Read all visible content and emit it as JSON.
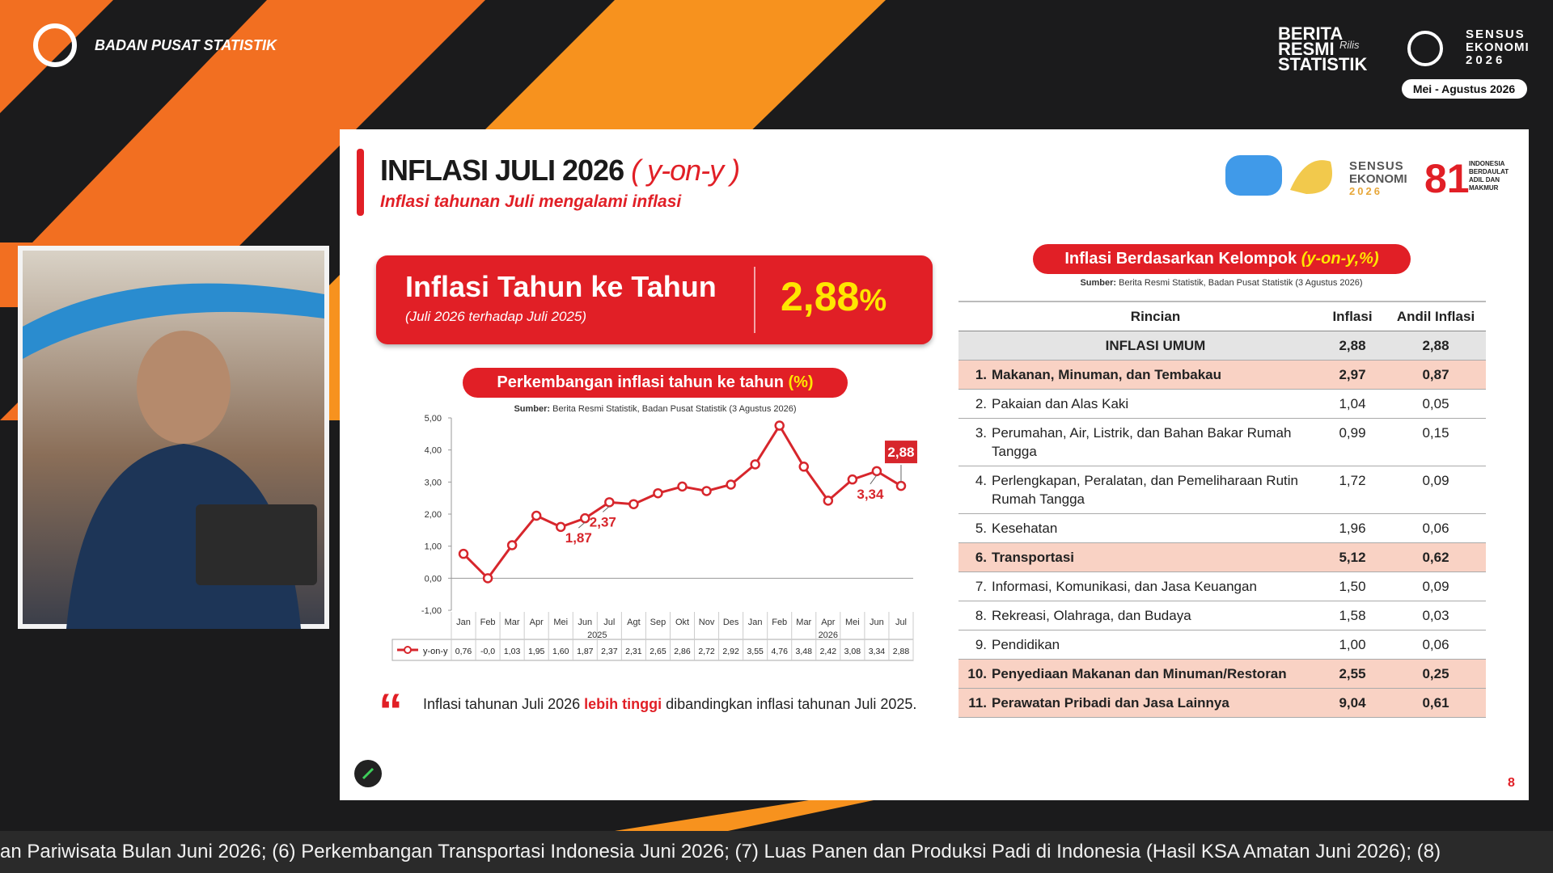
{
  "header": {
    "org": "BADAN PUSAT STATISTIK",
    "brs": [
      "BERITA",
      "RESMI",
      "STATISTIK"
    ],
    "brs_tag": "Rilis",
    "sensus": [
      "SENSUS",
      "EKONOMI",
      "2026"
    ],
    "period": "Mei - Agustus 2026"
  },
  "slide": {
    "title": "INFLASI JULI 2026",
    "title_tag": "( y-on-y )",
    "subtitle": "Inflasi tahunan Juli mengalami inflasi",
    "logo_sensus": [
      "SENSUS",
      "EKONOMI",
      "2026"
    ],
    "logo_motto": [
      "INDONESIA",
      "BERDAULAT",
      "ADIL DAN",
      "MAKMUR"
    ],
    "headline": {
      "label": "Inflasi Tahun ke Tahun",
      "sublabel": "(Juli 2026 terhadap Juli 2025)",
      "value": "2,88",
      "unit": "%"
    },
    "note": {
      "before": "Inflasi tahunan Juli 2026 ",
      "emphasis": "lebih tinggi",
      "after": " dibandingkan inflasi tahunan Juli 2025."
    },
    "page": "8"
  },
  "chart_data": {
    "type": "line",
    "title": "Perkembangan inflasi tahun ke tahun",
    "title_unit": "(%)",
    "source_label": "Sumber:",
    "source": "Berita Resmi Statistik, Badan Pusat Statistik (3 Agustus 2026)",
    "categories": [
      "Jan",
      "Feb",
      "Mar",
      "Apr",
      "Mei",
      "Jun",
      "Jul",
      "Agt",
      "Sep",
      "Okt",
      "Nov",
      "Des",
      "Jan",
      "Feb",
      "Mar",
      "Apr",
      "Mei",
      "Jun",
      "Jul"
    ],
    "year_labels": [
      "2025",
      "2026"
    ],
    "series": [
      {
        "name": "y-on-y",
        "color": "#d7262c",
        "values": [
          0.76,
          0,
          1.03,
          1.95,
          1.6,
          1.87,
          2.37,
          2.31,
          2.65,
          2.86,
          2.72,
          2.92,
          3.55,
          4.76,
          3.48,
          2.42,
          3.08,
          3.34,
          2.88
        ],
        "value_labels": [
          "0,76",
          "-0,0",
          "1,03",
          "1,95",
          "1,60",
          "1,87",
          "2,37",
          "2,31",
          "2,65",
          "2,86",
          "2,72",
          "2,92",
          "3,55",
          "4,76",
          "3,48",
          "2,42",
          "3,08",
          "3,34",
          "2,88"
        ]
      }
    ],
    "ylim": [
      -1,
      5
    ],
    "yticks": [
      {
        "value": -1,
        "label": "-1,00"
      },
      {
        "value": 0,
        "label": "0,00"
      },
      {
        "value": 1,
        "label": "1,00"
      },
      {
        "value": 2,
        "label": "2,00"
      },
      {
        "value": 3,
        "label": "3,00"
      },
      {
        "value": 4,
        "label": "4,00"
      },
      {
        "value": 5,
        "label": "5,00"
      }
    ],
    "grid": false
  },
  "groups_table": {
    "title": "Inflasi Berdasarkan Kelompok",
    "title_unit": "(y-on-y,%)",
    "source_label": "Sumber:",
    "source": "Berita Resmi Statistik, Badan Pusat Statistik (3 Agustus 2026)",
    "columns": [
      "Rincian",
      "Inflasi",
      "Andil Inflasi"
    ],
    "total": {
      "name": "INFLASI UMUM",
      "inflasi": "2,88",
      "andil": "2,88"
    },
    "rows": [
      {
        "no": "1.",
        "name": "Makanan, Minuman, dan Tembakau",
        "inflasi": "2,97",
        "andil": "0,87",
        "highlight": true
      },
      {
        "no": "2.",
        "name": "Pakaian dan Alas Kaki",
        "inflasi": "1,04",
        "andil": "0,05",
        "highlight": false
      },
      {
        "no": "3.",
        "name": "Perumahan, Air, Listrik, dan Bahan Bakar Rumah Tangga",
        "inflasi": "0,99",
        "andil": "0,15",
        "highlight": false
      },
      {
        "no": "4.",
        "name": "Perlengkapan, Peralatan, dan Pemeliharaan Rutin Rumah Tangga",
        "inflasi": "1,72",
        "andil": "0,09",
        "highlight": false
      },
      {
        "no": "5.",
        "name": "Kesehatan",
        "inflasi": "1,96",
        "andil": "0,06",
        "highlight": false
      },
      {
        "no": "6.",
        "name": "Transportasi",
        "inflasi": "5,12",
        "andil": "0,62",
        "highlight": true
      },
      {
        "no": "7.",
        "name": "Informasi, Komunikasi, dan Jasa Keuangan",
        "inflasi": "1,50",
        "andil": "0,09",
        "highlight": false
      },
      {
        "no": "8.",
        "name": "Rekreasi, Olahraga, dan Budaya",
        "inflasi": "1,58",
        "andil": "0,03",
        "highlight": false
      },
      {
        "no": "9.",
        "name": "Pendidikan",
        "inflasi": "1,00",
        "andil": "0,06",
        "highlight": false
      },
      {
        "no": "10.",
        "name": "Penyediaan Makanan dan Minuman/Restoran",
        "inflasi": "2,55",
        "andil": "0,25",
        "highlight": true
      },
      {
        "no": "11.",
        "name": "Perawatan Pribadi dan Jasa Lainnya",
        "inflasi": "9,04",
        "andil": "0,61",
        "highlight": true
      }
    ]
  },
  "ticker": "an Pariwisata Bulan Juni 2026; (6) Perkembangan Transportasi Indonesia Juni 2026; (7) Luas Panen dan Produksi Padi di Indonesia (Hasil KSA Amatan Juni 2026); (8)"
}
